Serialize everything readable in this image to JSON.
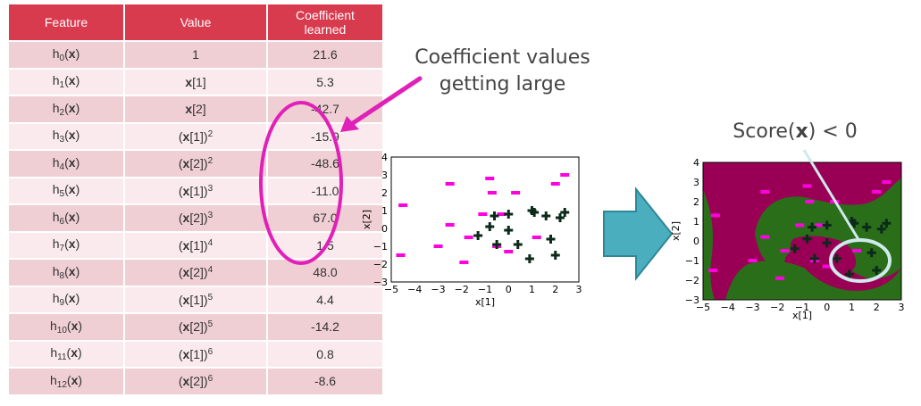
{
  "table": {
    "headers": {
      "feature": "Feature",
      "value": "Value",
      "coef_line1": "Coefficient",
      "coef_line2": "learned"
    },
    "rows": [
      {
        "sub": "0",
        "value_kind": "const",
        "value_text": "1",
        "coef": "21.6"
      },
      {
        "sub": "1",
        "value_kind": "x",
        "index": "1",
        "power": "",
        "coef": "5.3"
      },
      {
        "sub": "2",
        "value_kind": "x",
        "index": "2",
        "power": "",
        "coef": "-42.7"
      },
      {
        "sub": "3",
        "value_kind": "xp",
        "index": "1",
        "power": "2",
        "coef": "-15.9"
      },
      {
        "sub": "4",
        "value_kind": "xp",
        "index": "2",
        "power": "2",
        "coef": "-48.6"
      },
      {
        "sub": "5",
        "value_kind": "xp",
        "index": "1",
        "power": "3",
        "coef": "-11.0"
      },
      {
        "sub": "6",
        "value_kind": "xp",
        "index": "2",
        "power": "3",
        "coef": "67.0"
      },
      {
        "sub": "7",
        "value_kind": "xp",
        "index": "1",
        "power": "4",
        "coef": "1.5"
      },
      {
        "sub": "8",
        "value_kind": "xp",
        "index": "2",
        "power": "4",
        "coef": "48.0"
      },
      {
        "sub": "9",
        "value_kind": "xp",
        "index": "1",
        "power": "5",
        "coef": "4.4"
      },
      {
        "sub": "10",
        "value_kind": "xp",
        "index": "2",
        "power": "5",
        "coef": "-14.2"
      },
      {
        "sub": "11",
        "value_kind": "xp",
        "index": "1",
        "power": "6",
        "coef": "0.8"
      },
      {
        "sub": "12",
        "value_kind": "xp",
        "index": "2",
        "power": "6",
        "coef": "-8.6"
      }
    ]
  },
  "callouts": {
    "coef_line1": "Coefficient values",
    "coef_line2": "getting large",
    "score_prefix": "Score(",
    "score_var": "x",
    "score_suffix": ") < 0"
  },
  "colors": {
    "header": "#d83a4e",
    "ellipse": "#e020b8",
    "minus_marker": "#ff00e0",
    "plus_marker": "#0b2a1a",
    "arrow": "#4aaebe",
    "region_negative": "#990055",
    "region_positive": "#2b6e1a",
    "score_ellipse": "#cfe9ec"
  },
  "scatter": {
    "xlabel": "x[1]",
    "ylabel": "x[2]",
    "xlim": [
      -5,
      3
    ],
    "ylim": [
      -3,
      4
    ],
    "xticks": [
      "−5",
      "−4",
      "−3",
      "−2",
      "−1",
      "0",
      "1",
      "2",
      "3"
    ],
    "yticks": [
      "4",
      "3",
      "2",
      "1",
      "0",
      "−1",
      "−2",
      "−3"
    ],
    "minus_points": [
      [
        -4.5,
        1.3
      ],
      [
        -4.6,
        -1.5
      ],
      [
        -2.5,
        2.5
      ],
      [
        -2.5,
        0.2
      ],
      [
        -3.0,
        -1.0
      ],
      [
        -1.9,
        -1.9
      ],
      [
        -1.1,
        0.8
      ],
      [
        -0.8,
        2.8
      ],
      [
        -0.7,
        2.0
      ],
      [
        0.3,
        2.0
      ],
      [
        2.0,
        2.5
      ],
      [
        2.4,
        3.0
      ],
      [
        -0.5,
        -1.0
      ],
      [
        -0.3,
        0.8
      ],
      [
        -1.7,
        -0.5
      ],
      [
        0.0,
        -1.3
      ],
      [
        1.2,
        -0.5
      ]
    ],
    "plus_points": [
      [
        -1.3,
        -0.4
      ],
      [
        -0.8,
        0.1
      ],
      [
        -0.6,
        0.7
      ],
      [
        -0.5,
        -0.9
      ],
      [
        0.0,
        0.8
      ],
      [
        0.0,
        -0.1
      ],
      [
        0.4,
        -0.9
      ],
      [
        1.0,
        1.0
      ],
      [
        1.1,
        0.9
      ],
      [
        1.6,
        0.7
      ],
      [
        2.2,
        0.6
      ],
      [
        2.4,
        0.9
      ],
      [
        1.8,
        -0.6
      ],
      [
        0.9,
        -1.7
      ],
      [
        2.0,
        -1.5
      ]
    ]
  },
  "decision": {
    "xlabel": "x[1]",
    "ylabel": "x[2]",
    "xticks": [
      "−5",
      "−4",
      "−3",
      "−2",
      "−1",
      "0",
      "1",
      "2",
      "3"
    ],
    "yticks": [
      "4",
      "3",
      "2",
      "1",
      "0",
      "−1",
      "−2",
      "−3"
    ]
  }
}
